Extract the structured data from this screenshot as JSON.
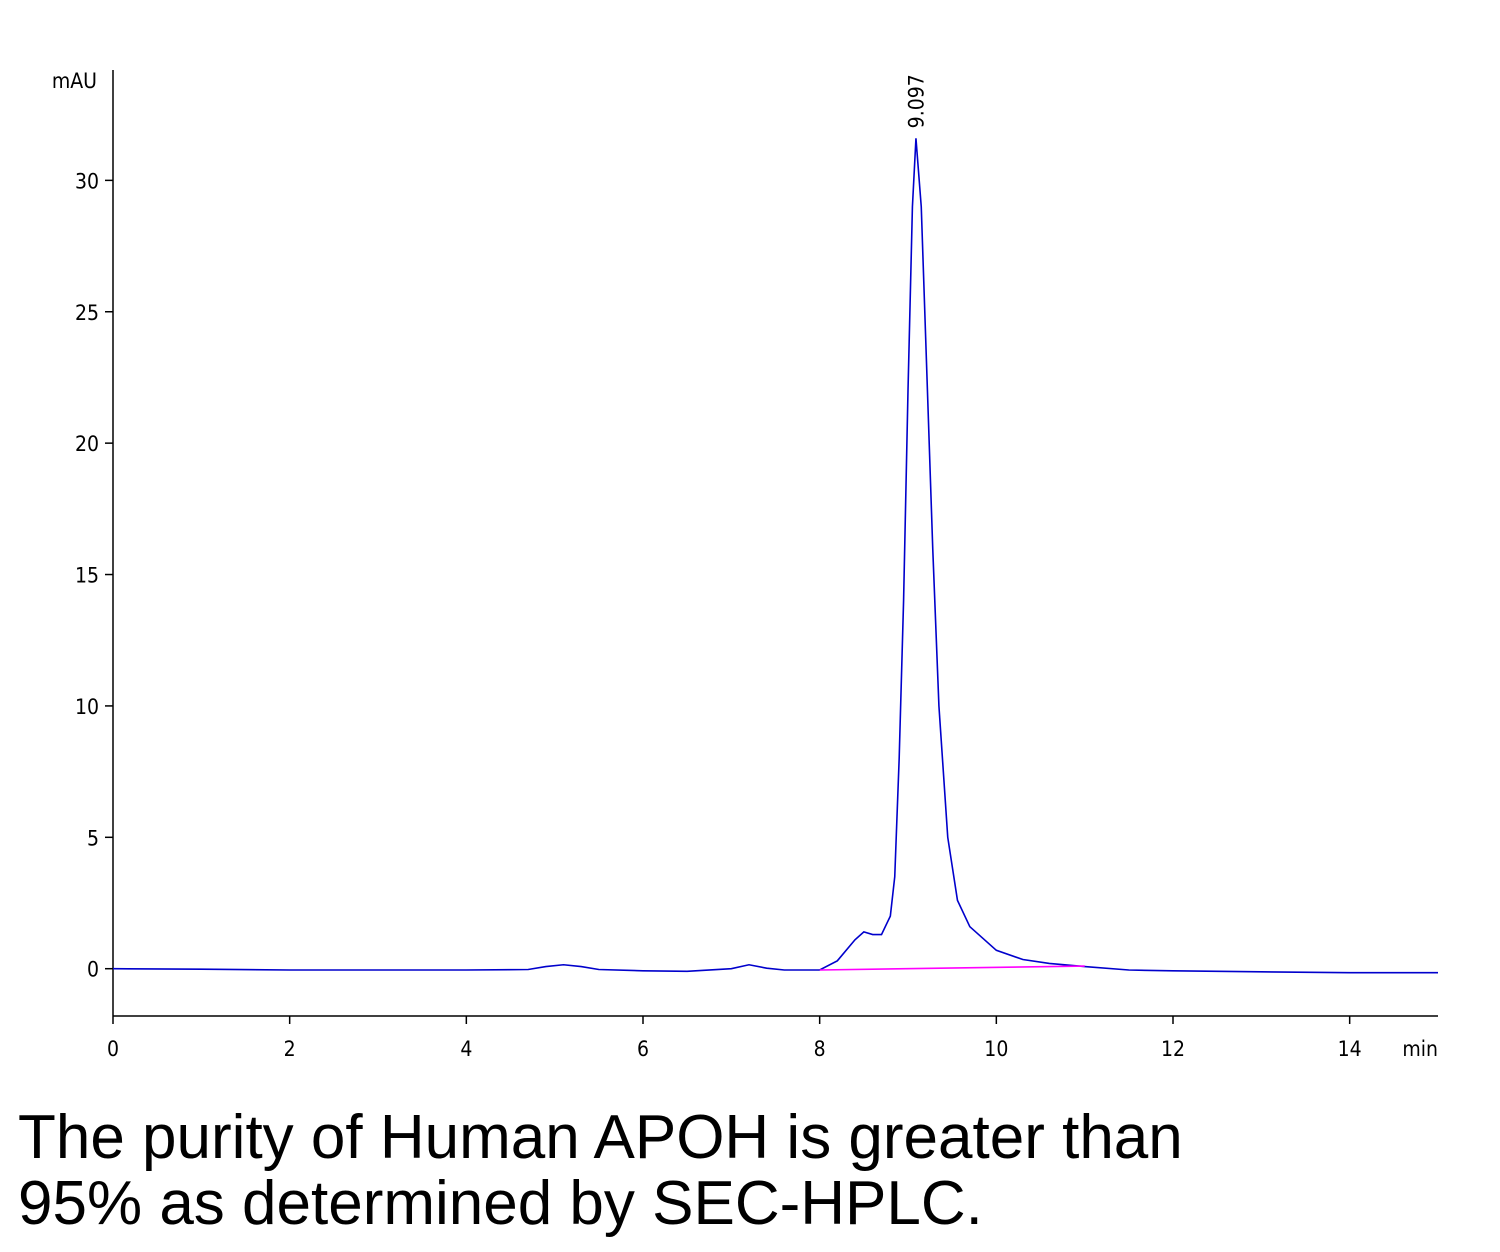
{
  "chart_data": {
    "type": "line",
    "y_label": "mAU",
    "x_label": "min",
    "xlim": [
      0,
      15
    ],
    "xticks": [
      0,
      2,
      4,
      6,
      8,
      10,
      12,
      14
    ],
    "ylim": [
      -1.8,
      34.2
    ],
    "yticks": [
      0,
      5,
      10,
      15,
      20,
      25,
      30
    ],
    "series": [
      {
        "color": "#0000cc",
        "x": [
          0,
          1,
          2,
          3,
          4,
          4.7,
          4.9,
          5.1,
          5.3,
          5.5,
          6,
          6.5,
          7,
          7.2,
          7.4,
          7.6,
          8,
          8.2,
          8.4,
          8.5,
          8.6,
          8.7,
          8.8,
          8.85,
          8.9,
          8.95,
          9.0,
          9.05,
          9.09,
          9.15,
          9.2,
          9.28,
          9.35,
          9.45,
          9.56,
          9.7,
          10.0,
          10.3,
          10.6,
          11,
          11.5,
          12,
          13,
          14,
          15
        ],
        "values": [
          0,
          -0.02,
          -0.05,
          -0.05,
          -0.05,
          -0.03,
          0.08,
          0.15,
          0.08,
          -0.03,
          -0.08,
          -0.1,
          0.0,
          0.15,
          0.02,
          -0.05,
          -0.05,
          0.3,
          1.1,
          1.4,
          1.3,
          1.3,
          2.0,
          3.5,
          8,
          14,
          22,
          29,
          31.6,
          29,
          24,
          16,
          10,
          5,
          2.6,
          1.6,
          0.7,
          0.35,
          0.2,
          0.08,
          -0.05,
          -0.08,
          -0.12,
          -0.15,
          -0.15
        ]
      },
      {
        "color": "#ff00ff",
        "x": [
          8,
          11
        ],
        "values": [
          -0.05,
          0.1
        ]
      }
    ],
    "peak_label": {
      "text": "9.097",
      "x": 9.097,
      "y": 31.6
    }
  },
  "caption": [
    "The purity of Human APOH is greater than",
    "95% as determined by SEC-HPLC."
  ]
}
